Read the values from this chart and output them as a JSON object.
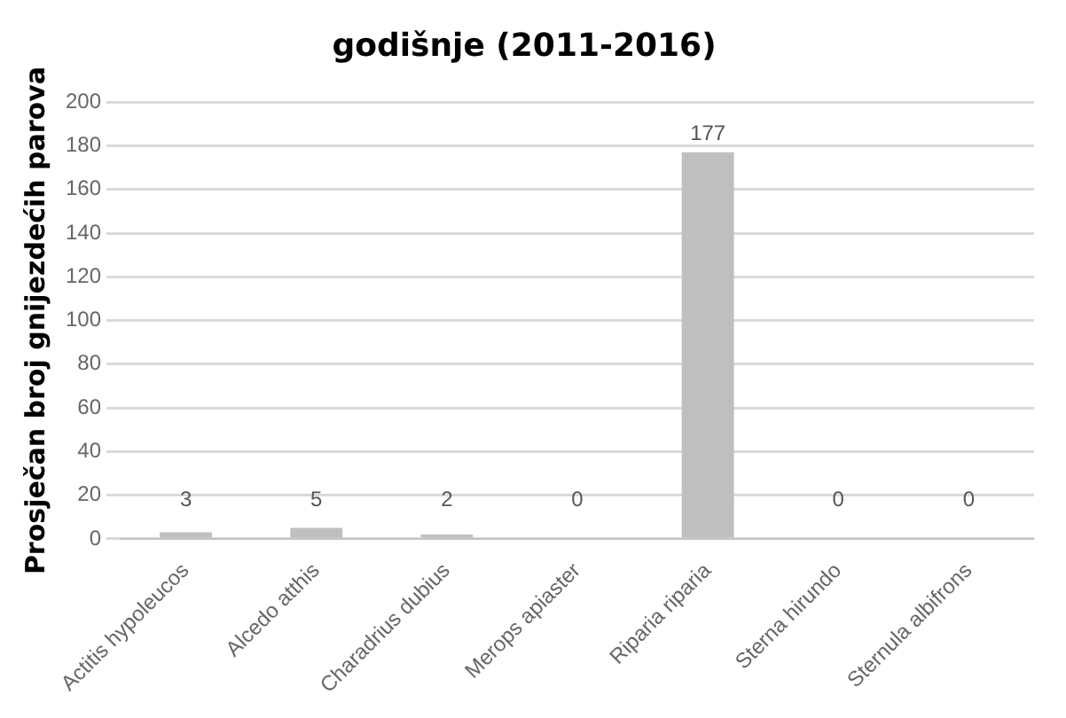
{
  "chart_data": {
    "type": "bar",
    "title": "godišnje (2011-2016)",
    "ylabel": "Prosječan broj gnijezdećih parova",
    "categories": [
      "Actitis hypoleucos",
      "Alcedo atthis",
      "Charadrius dubius",
      "Merops apiaster",
      "Riparia riparia",
      "Sterna hirundo",
      "Sternula albifrons"
    ],
    "values": [
      3,
      5,
      2,
      0,
      177,
      0,
      0
    ],
    "color": "#bfbfbf",
    "ylim": [
      0,
      200
    ],
    "yticks": [
      0,
      20,
      40,
      60,
      80,
      100,
      120,
      140,
      160,
      180,
      200
    ],
    "grid": "y",
    "data_labels": true,
    "legend": false
  }
}
